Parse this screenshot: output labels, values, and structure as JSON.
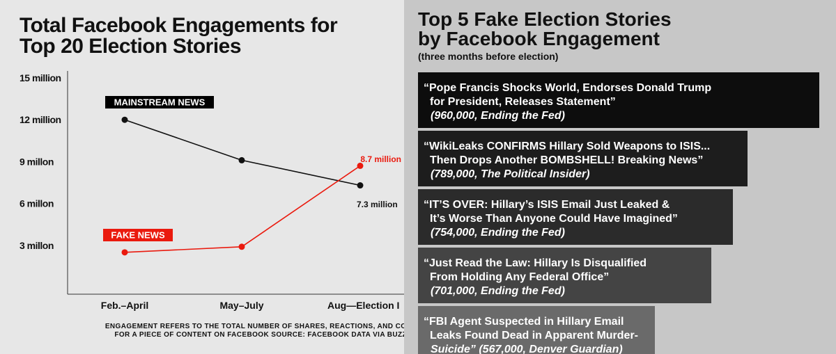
{
  "left_panel": {
    "title_line1": "Total Facebook Engagements for",
    "title_line2": "Top 20 Election Stories",
    "footnote_line1": "ENGAGEMENT REFERS TO THE TOTAL NUMBER OF SHARES, REACTIONS, AND COMMENTS",
    "footnote_line2": "FOR A PIECE OF CONTENT ON FACEBOOK SOURCE: FACEBOOK DATA VIA BUZZSUMO"
  },
  "right_panel": {
    "title_line1": "Top 5 Fake Election Stories",
    "title_line2": "by Facebook Engagement",
    "subtitle": "(three months before election)",
    "stories": [
      {
        "line1": "“Pope Francis Shocks World, Endorses Donald Trump",
        "line2": "for President, Releases Statement”",
        "source": "(960,000, Ending the Fed)",
        "engagement": 960000,
        "color": "#0d0d0d"
      },
      {
        "line1": "“WikiLeaks CONFIRMS Hillary Sold Weapons to ISIS...",
        "line2": "Then Drops Another BOMBSHELL! Breaking News”",
        "source": "(789,000, The Political Insider)",
        "engagement": 789000,
        "color": "#1d1d1d"
      },
      {
        "line1": "“IT’S OVER: Hillary’s ISIS Email Just Leaked &",
        "line2": "It’s Worse Than Anyone Could Have Imagined”",
        "source": "(754,000, Ending the Fed)",
        "engagement": 754000,
        "color": "#2b2b2b"
      },
      {
        "line1": "“Just Read the Law: Hillary Is Disqualified",
        "line2": "From Holding Any Federal Office”",
        "source": "(701,000, Ending the Fed)",
        "engagement": 701000,
        "color": "#444444"
      },
      {
        "line1": "“FBI Agent Suspected in Hillary Email",
        "line2": "Leaks Found Dead in Apparent Murder-",
        "source": "Suicide” (567,000, Denver Guardian)",
        "engagement": 567000,
        "color": "#6a6a6a"
      }
    ]
  },
  "chart_data": {
    "type": "line",
    "title": "Total Facebook Engagements for Top 20 Election Stories",
    "categories": [
      "Feb.–April",
      "May–July",
      "Aug—Election Day"
    ],
    "visible_category_labels": [
      "Feb.–April",
      "May–July",
      "Aug—Election I"
    ],
    "ytick_values": [
      3,
      6,
      9,
      12,
      15
    ],
    "ytick_labels": [
      "3 millon",
      "6 millon",
      "9 millon",
      "12 million",
      "15 million"
    ],
    "ylim": [
      0,
      15
    ],
    "series": [
      {
        "name": "MAINSTREAM NEWS",
        "values": [
          12,
          9.1,
          7.3
        ],
        "color": "#111111",
        "label_bg": "#000000",
        "end_label": "7.3 million"
      },
      {
        "name": "FAKE NEWS",
        "values": [
          2.5,
          2.9,
          8.7
        ],
        "color": "#ea1a0e",
        "label_bg": "#ea1a0e",
        "end_label": "8.7 million"
      }
    ],
    "grid": false,
    "legend": "inline labels"
  }
}
